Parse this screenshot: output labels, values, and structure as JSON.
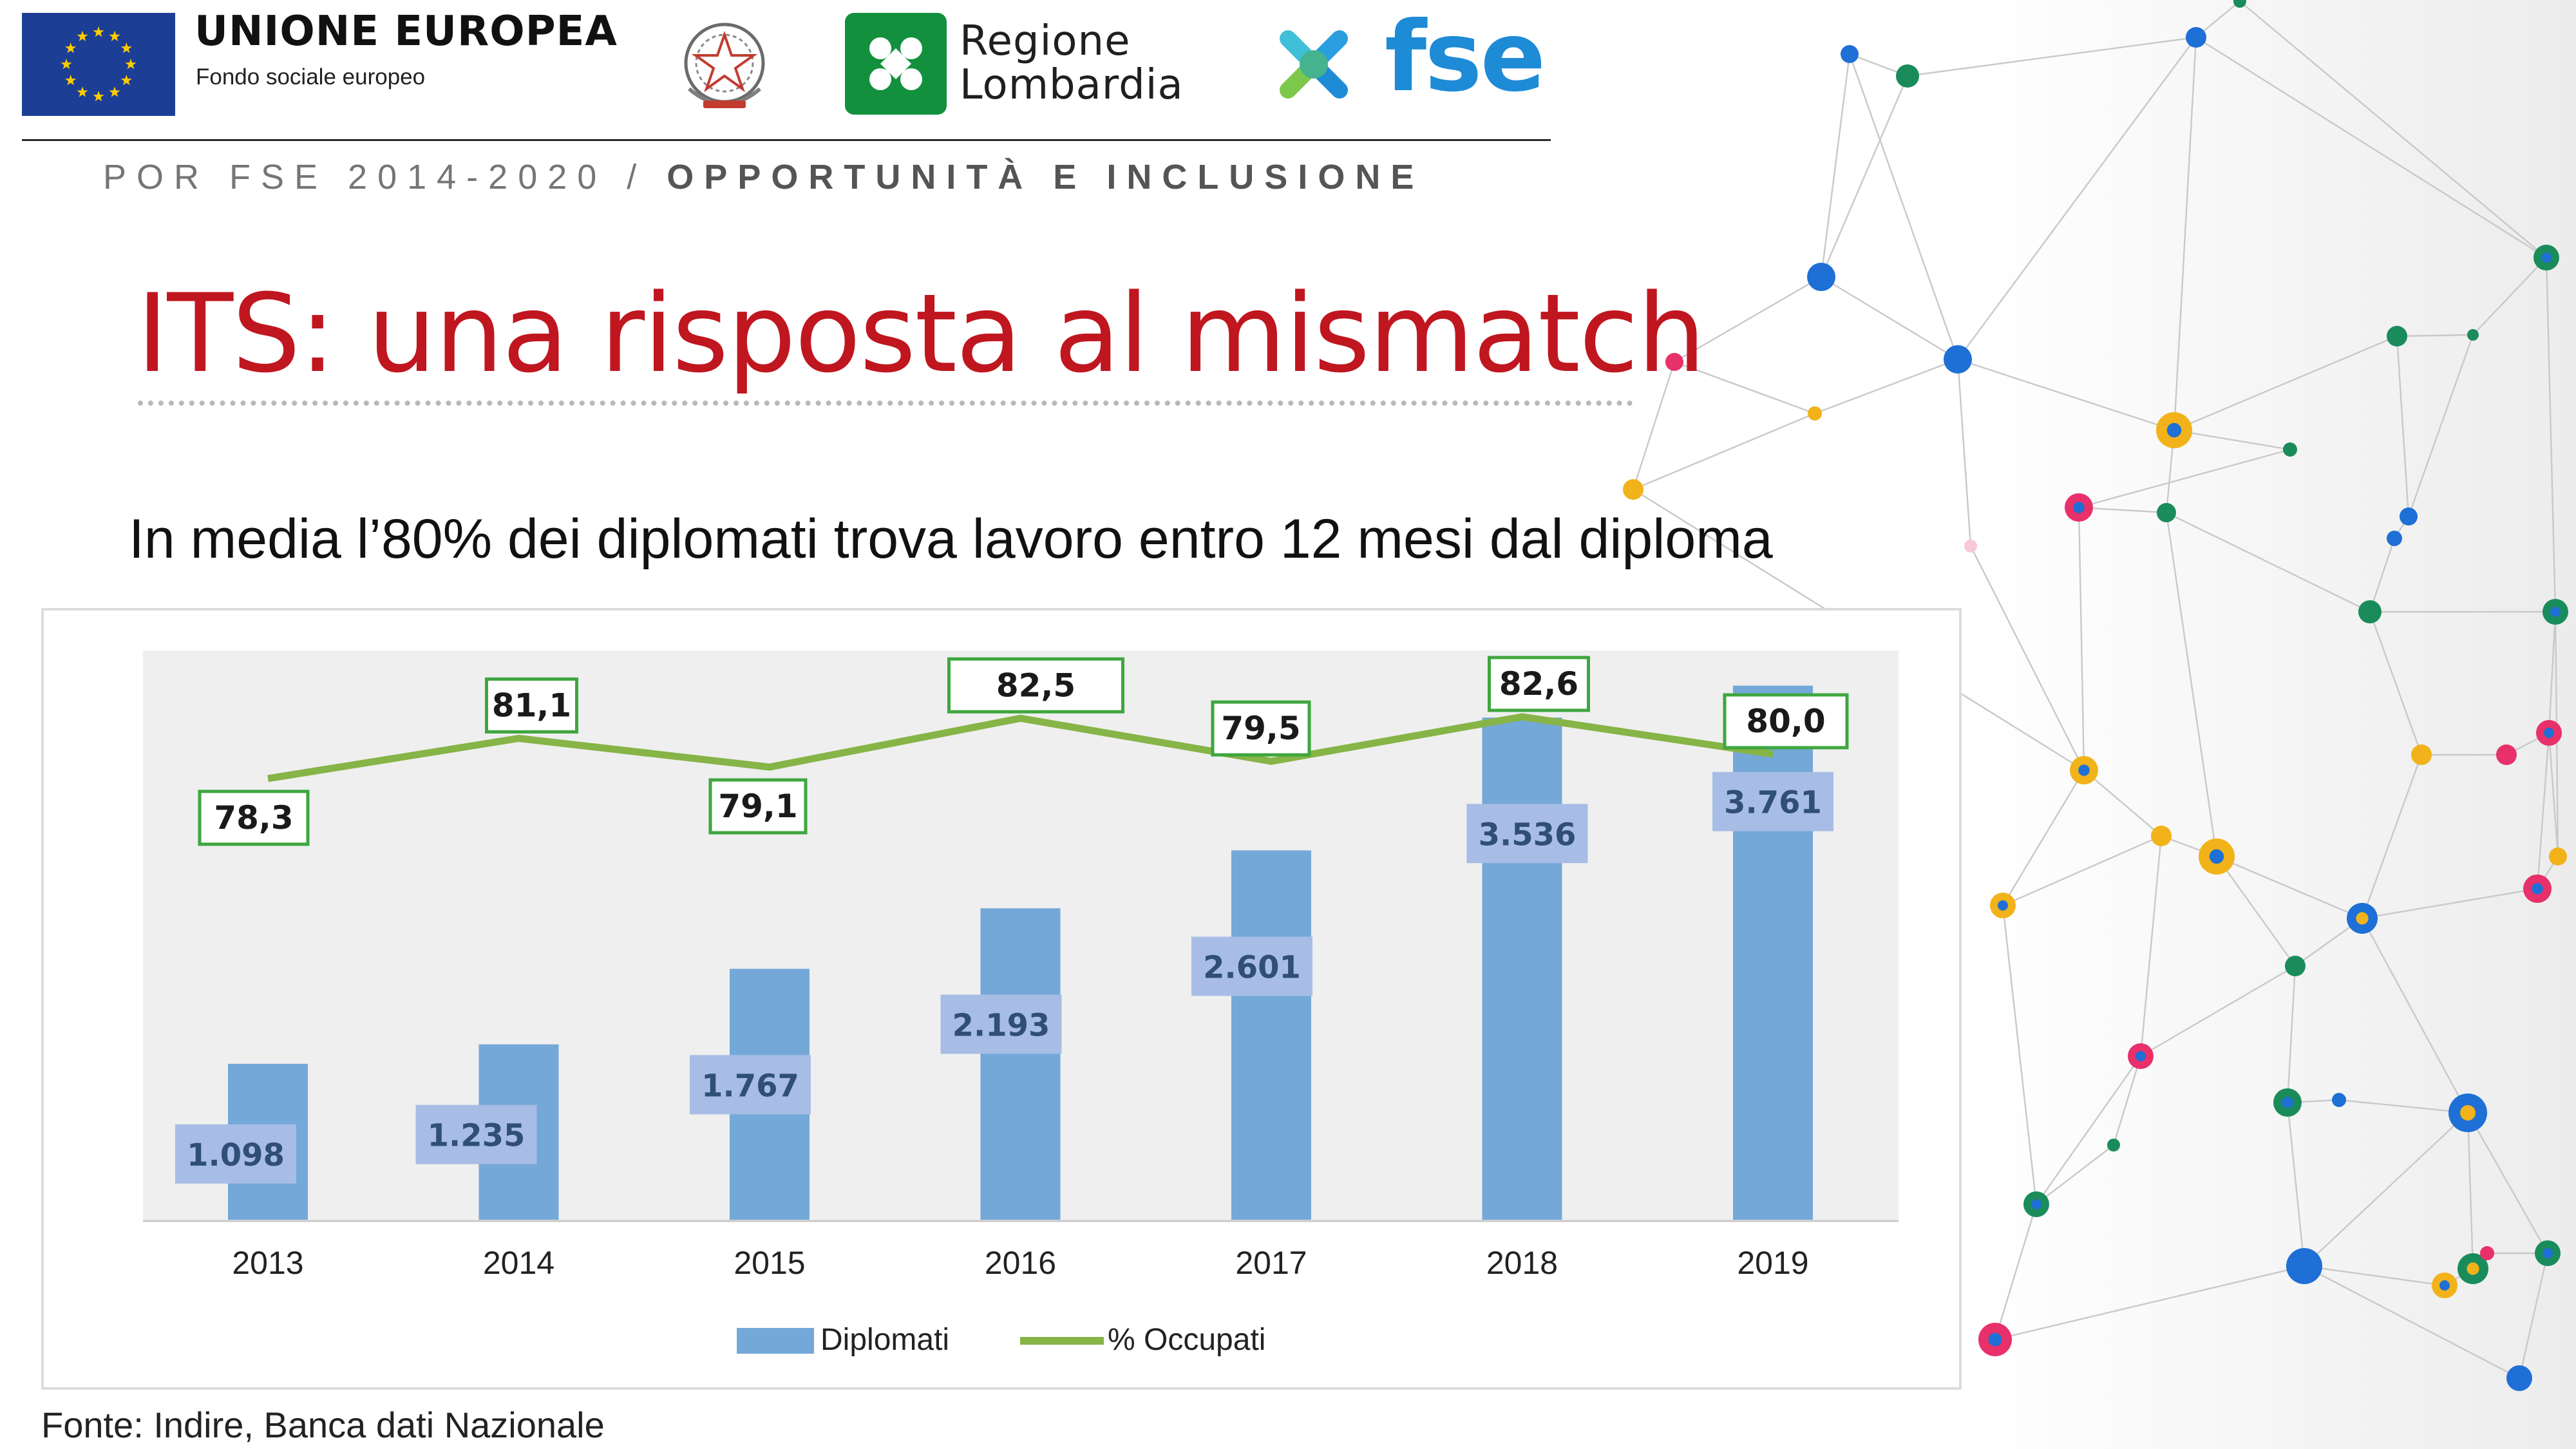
{
  "header": {
    "eu_title": "UNIONE EUROPEA",
    "eu_subtitle": "Fondo sociale europeo",
    "region_line1": "Regione",
    "region_line2": "Lombardia",
    "fse_label": "fse",
    "program_regular": "POR FSE 2014-2020 / ",
    "program_bold": "OPPORTUNITÀ E INCLUSIONE"
  },
  "slide": {
    "title": "ITS: una risposta al mismatch",
    "subtitle": "In media l’80% dei diplomati trova lavoro entro 12 mesi dal diploma",
    "source": "Fonte: Indire, Banca dati Nazionale"
  },
  "colors": {
    "title_red": "#c0161f",
    "bar_blue": "#74a8d8",
    "bar_label_bg": "#a7bde5",
    "bar_label_text": "#2f4e78",
    "line_green": "#86b447",
    "label_box_green": "#3ea63e",
    "plot_bg": "#efefef",
    "eu_blue": "#1c3f95",
    "eu_gold": "#ffcc00",
    "lombardia_green": "#12903d",
    "fse_blue": "#1e8bd6"
  },
  "icons": {
    "eu": "eu-flag-icon",
    "emblem": "italian-republic-emblem-icon",
    "lombardia": "lombardia-logo-icon",
    "fse": "fse-logo-icon"
  },
  "chart_data": {
    "type": "bar",
    "categories": [
      "2013",
      "2014",
      "2015",
      "2016",
      "2017",
      "2018",
      "2019"
    ],
    "series": [
      {
        "name": "Diplomati",
        "type": "bar",
        "values": [
          1098,
          1235,
          1767,
          2193,
          2601,
          3536,
          3761
        ],
        "labels": [
          "1.098",
          "1.235",
          "1.767",
          "2.193",
          "2.601",
          "3.536",
          "3.761"
        ]
      },
      {
        "name": "% Occupati",
        "type": "line",
        "values": [
          78.3,
          81.1,
          79.1,
          82.5,
          79.5,
          82.6,
          80.0
        ],
        "labels": [
          "78,3",
          "81,1",
          "79,1",
          "82,5",
          "79,5",
          "82,6",
          "80,0"
        ]
      }
    ],
    "legend": [
      "Diplomati",
      "% Occupati"
    ],
    "legend_position": "bottom",
    "grid": false,
    "ylim_bars": [
      0,
      3900
    ]
  }
}
